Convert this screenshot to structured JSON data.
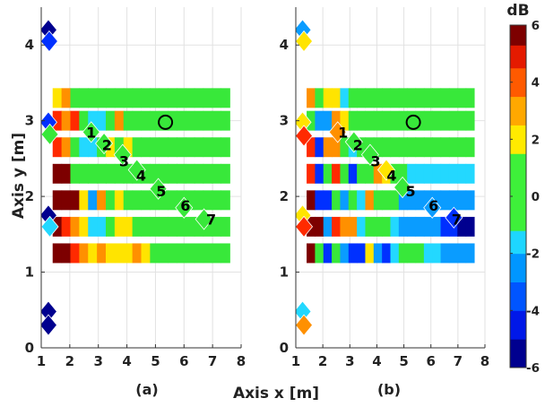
{
  "figure": {
    "xlabel": "Axis x [m]",
    "ylabel": "Axis y [m]",
    "colorbar": {
      "unit": "dB",
      "range": [
        -6,
        6
      ],
      "ticks": [
        "6",
        "4",
        "2",
        "0",
        "-2",
        "-4",
        "-6"
      ]
    }
  },
  "chart_data": [
    {
      "type": "heatmap",
      "panel_label": "(a)",
      "xlim": [
        1,
        8
      ],
      "ylim": [
        0,
        4.5
      ],
      "xticks": [
        "1",
        "2",
        "3",
        "4",
        "5",
        "6",
        "7",
        "8"
      ],
      "yticks": [
        "0",
        "1",
        "2",
        "3",
        "4"
      ],
      "grid": true,
      "row_y": [
        3.3,
        3.0,
        2.65,
        2.3,
        1.95,
        1.6,
        1.25
      ],
      "row_x_start": 1.4,
      "row_x_end": 7.6,
      "rows": [
        [
          2,
          3.5,
          0.5,
          0.5,
          0.5,
          0.5,
          0.5,
          0.5,
          0.5,
          0.5,
          0.5,
          0.5,
          0.5,
          0.5,
          0.5,
          0.5,
          0.5,
          0.5,
          0.5,
          0.5
        ],
        [
          4.5,
          4,
          5,
          1,
          -1.5,
          -1,
          1.5,
          3,
          0.5,
          0.5,
          0.5,
          0.5,
          0.5,
          0.5,
          0.5,
          0.5,
          0.5,
          0.5,
          0.5,
          0.5
        ],
        [
          5,
          3.5,
          0.5,
          -1.5,
          -1.5,
          1,
          2,
          1.5,
          2,
          0.5,
          0.5,
          0.5,
          0.5,
          0.5,
          0.5,
          0.5,
          0.5,
          0.5,
          0.5,
          0.5
        ],
        [
          6,
          6,
          0.5,
          0.5,
          0.5,
          0.5,
          0.5,
          0.5,
          0.5,
          0.5,
          0.5,
          0.5,
          0.5,
          0.5,
          0.5,
          0.5,
          0.5,
          0.5,
          0.5,
          0.5
        ],
        [
          6,
          6,
          6,
          2,
          -2,
          3.5,
          0.5,
          2.5,
          0.5,
          0.5,
          0.5,
          0.5,
          0.5,
          0.5,
          0.5,
          0.5,
          0.5,
          0.5,
          0.5,
          0.5
        ],
        [
          6,
          5,
          3.5,
          2,
          -1.5,
          -1.5,
          1.5,
          2.5,
          2,
          1.5,
          1,
          0.5,
          0.5,
          0.5,
          0.5,
          0.5,
          0.5,
          0.5,
          0.5,
          0.5
        ],
        [
          6,
          5.5,
          4.5,
          3,
          2.5,
          3.5,
          2,
          2,
          2.5,
          3,
          2,
          1.5,
          0.5,
          0.5,
          0.5,
          0.5,
          0.5,
          0.5,
          0.5,
          0.5
        ]
      ],
      "diamonds": [
        {
          "x": 1.25,
          "y": 4.2,
          "v": -6
        },
        {
          "x": 1.28,
          "y": 4.05,
          "v": -4
        },
        {
          "x": 1.25,
          "y": 2.98,
          "v": -3.5
        },
        {
          "x": 1.3,
          "y": 2.82,
          "v": 0.5
        },
        {
          "x": 1.25,
          "y": 1.75,
          "v": -5
        },
        {
          "x": 1.3,
          "y": 1.6,
          "v": -1.5
        },
        {
          "x": 1.25,
          "y": 0.48,
          "v": -6
        },
        {
          "x": 1.25,
          "y": 0.3,
          "v": -6
        },
        {
          "x": 2.75,
          "y": 2.85,
          "v": 0.5
        },
        {
          "x": 3.2,
          "y": 2.7,
          "v": 0.5
        },
        {
          "x": 3.85,
          "y": 2.55,
          "v": 1
        },
        {
          "x": 4.35,
          "y": 2.35,
          "v": 0.5
        },
        {
          "x": 5.1,
          "y": 2.1,
          "v": 0.5
        },
        {
          "x": 6,
          "y": 1.85,
          "v": 0.5
        },
        {
          "x": 6.7,
          "y": 1.7,
          "v": 0.5
        }
      ],
      "circle": {
        "x": 5.35,
        "y": 2.98
      },
      "labels": [
        {
          "text": "1",
          "x": 2.75,
          "y": 2.85
        },
        {
          "text": "2",
          "x": 3.3,
          "y": 2.68
        },
        {
          "text": "3",
          "x": 3.9,
          "y": 2.47
        },
        {
          "text": "4",
          "x": 4.5,
          "y": 2.28
        },
        {
          "text": "5",
          "x": 5.2,
          "y": 2.07
        },
        {
          "text": "6",
          "x": 6.05,
          "y": 1.88
        },
        {
          "text": "7",
          "x": 6.95,
          "y": 1.7
        }
      ]
    },
    {
      "type": "heatmap",
      "panel_label": "(b)",
      "xlim": [
        1,
        8
      ],
      "ylim": [
        0,
        4.5
      ],
      "xticks": [
        "1",
        "2",
        "3",
        "4",
        "5",
        "6",
        "7",
        "8"
      ],
      "yticks": [
        "0",
        "1",
        "2",
        "3",
        "4"
      ],
      "grid": true,
      "row_y": [
        3.3,
        3.0,
        2.65,
        2.3,
        1.95,
        1.6,
        1.25
      ],
      "row_x_start": 1.4,
      "row_x_end": 7.6,
      "rows": [
        [
          3,
          1.5,
          2,
          2,
          -1.5,
          0.5,
          0.5,
          0.5,
          0.5,
          0.5,
          0.5,
          0.5,
          0.5,
          0.5,
          0.5,
          0.5,
          0.5,
          0.5,
          0.5,
          0.5
        ],
        [
          1.5,
          -3,
          -3,
          4,
          2,
          0.5,
          0.5,
          0.5,
          0.5,
          0.5,
          0.5,
          0.5,
          0.5,
          0.5,
          0.5,
          0.5,
          0.5,
          0.5,
          0.5,
          0.5
        ],
        [
          4.5,
          -4,
          3.5,
          4,
          0.5,
          -1.5,
          0.5,
          0.5,
          0.5,
          0.5,
          0.5,
          0.5,
          0.5,
          0.5,
          0.5,
          0.5,
          0.5,
          0.5,
          0.5,
          0.5
        ],
        [
          5,
          -3.5,
          0.5,
          4.5,
          0.5,
          -4.5,
          0.5,
          1,
          3,
          2,
          0.5,
          0.5,
          -1.5,
          -1.5,
          -1.5,
          -1.5,
          -1.5,
          -1.5,
          -1.5,
          -1.5
        ],
        [
          6,
          -4,
          -4,
          0.5,
          -2,
          0.5,
          -1.5,
          3,
          0.5,
          0.5,
          0.5,
          -2.5,
          -2.5,
          -2.5,
          -2.5,
          -2.5,
          -2.5,
          -2.5,
          -2.5,
          -2.5
        ],
        [
          6,
          5.5,
          -2.5,
          4.5,
          4,
          3.5,
          -1.5,
          0.5,
          0.5,
          0.5,
          -1,
          -2,
          -2,
          -2.5,
          -2.5,
          -3,
          -3.5,
          -4.5,
          -5,
          -5
        ],
        [
          6,
          0.5,
          -4.5,
          0.5,
          -2.5,
          -4,
          -3.5,
          2,
          -2.5,
          -3.5,
          -1.5,
          0.5,
          0.5,
          0.5,
          -1.5,
          -1.5,
          -3,
          -3,
          -3,
          -3
        ]
      ],
      "diamonds": [
        {
          "x": 1.25,
          "y": 4.2,
          "v": -2.5
        },
        {
          "x": 1.3,
          "y": 4.05,
          "v": 2
        },
        {
          "x": 1.25,
          "y": 2.98,
          "v": 2
        },
        {
          "x": 1.3,
          "y": 2.8,
          "v": 5
        },
        {
          "x": 1.25,
          "y": 1.75,
          "v": 2
        },
        {
          "x": 1.3,
          "y": 1.6,
          "v": 5
        },
        {
          "x": 1.25,
          "y": 0.48,
          "v": -1.5
        },
        {
          "x": 1.3,
          "y": 0.3,
          "v": 3
        },
        {
          "x": 2.55,
          "y": 2.85,
          "v": 3.5
        },
        {
          "x": 3.15,
          "y": 2.72,
          "v": 0.5
        },
        {
          "x": 3.75,
          "y": 2.55,
          "v": 0.5
        },
        {
          "x": 4.35,
          "y": 2.35,
          "v": 2.5
        },
        {
          "x": 4.95,
          "y": 2.12,
          "v": 0.5
        },
        {
          "x": 6.05,
          "y": 1.85,
          "v": -3
        },
        {
          "x": 6.85,
          "y": 1.72,
          "v": -3.5
        }
      ],
      "circle": {
        "x": 5.35,
        "y": 2.98
      },
      "labels": [
        {
          "text": "1",
          "x": 2.75,
          "y": 2.85
        },
        {
          "text": "2",
          "x": 3.3,
          "y": 2.68
        },
        {
          "text": "3",
          "x": 3.95,
          "y": 2.47
        },
        {
          "text": "4",
          "x": 4.55,
          "y": 2.28
        },
        {
          "text": "5",
          "x": 5.25,
          "y": 2.07
        },
        {
          "text": "6",
          "x": 6.1,
          "y": 1.88
        },
        {
          "text": "7",
          "x": 6.95,
          "y": 1.7
        }
      ]
    }
  ]
}
